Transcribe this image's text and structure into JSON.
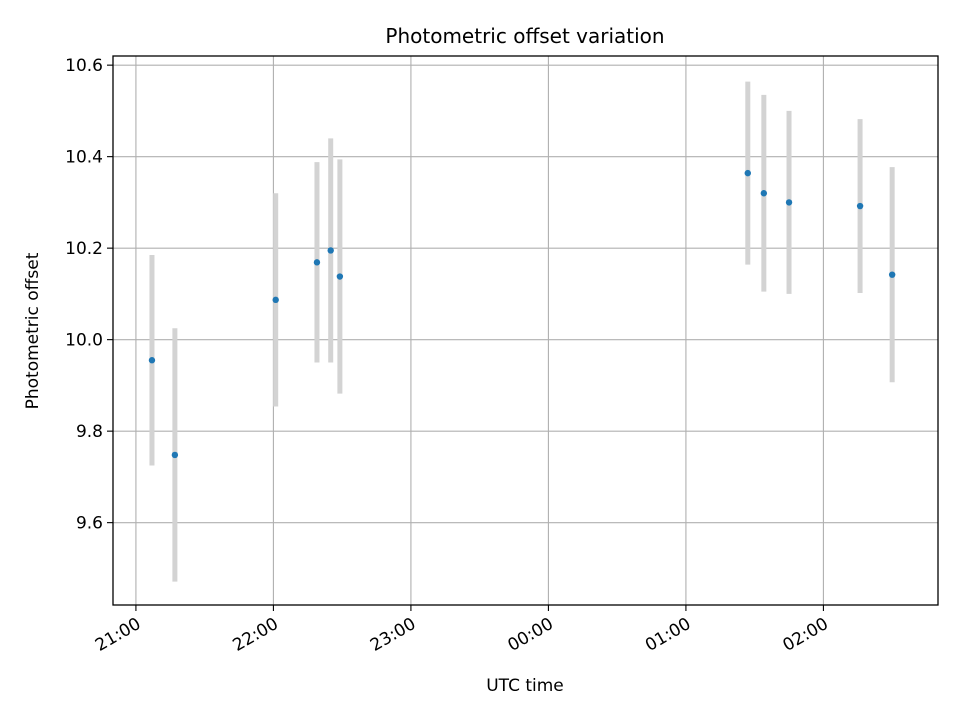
{
  "chart_data": {
    "type": "scatter",
    "title": "Photometric offset variation",
    "xlabel": "UTC time",
    "ylabel": "Photometric offset",
    "xlim": [
      "20:50",
      "02:50"
    ],
    "ylim": [
      9.42,
      10.62
    ],
    "x_ticks": [
      {
        "t": "21:00",
        "label": "21:00"
      },
      {
        "t": "22:00",
        "label": "22:00"
      },
      {
        "t": "23:00",
        "label": "23:00"
      },
      {
        "t": "00:00",
        "label": "00:00"
      },
      {
        "t": "01:00",
        "label": "01:00"
      },
      {
        "t": "02:00",
        "label": "02:00"
      }
    ],
    "y_ticks": [
      {
        "v": 9.6,
        "label": "9.6"
      },
      {
        "v": 9.8,
        "label": "9.8"
      },
      {
        "v": 10.0,
        "label": "10.0"
      },
      {
        "v": 10.2,
        "label": "10.2"
      },
      {
        "v": 10.4,
        "label": "10.4"
      },
      {
        "v": 10.6,
        "label": "10.6"
      }
    ],
    "grid": true,
    "point_color": "#1f77b4",
    "errorbar_color": "#d3d3d3",
    "points": [
      {
        "t": "21:07",
        "y": 9.955,
        "err": 0.23
      },
      {
        "t": "21:17",
        "y": 9.748,
        "err": 0.277
      },
      {
        "t": "22:01",
        "y": 10.087,
        "err": 0.233
      },
      {
        "t": "22:19",
        "y": 10.169,
        "err": 0.219
      },
      {
        "t": "22:25",
        "y": 10.195,
        "err": 0.245
      },
      {
        "t": "22:29",
        "y": 10.138,
        "err": 0.256
      },
      {
        "t": "01:27",
        "y": 10.364,
        "err": 0.2
      },
      {
        "t": "01:34",
        "y": 10.32,
        "err": 0.215
      },
      {
        "t": "01:45",
        "y": 10.3,
        "err": 0.2
      },
      {
        "t": "02:16",
        "y": 10.292,
        "err": 0.19
      },
      {
        "t": "02:30",
        "y": 10.142,
        "err": 0.235
      }
    ]
  }
}
